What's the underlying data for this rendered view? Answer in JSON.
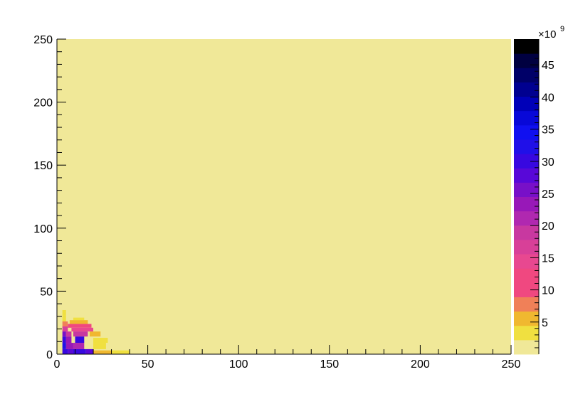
{
  "chart_data": {
    "type": "heatmap",
    "title": "",
    "xlabel": "",
    "ylabel": "",
    "xlim": [
      0,
      250
    ],
    "ylim": [
      0,
      250
    ],
    "x_ticks": [
      "0",
      "50",
      "100",
      "150",
      "200",
      "250"
    ],
    "y_ticks": [
      "0",
      "50",
      "100",
      "150",
      "200",
      "250"
    ],
    "colorbar": {
      "range": [
        0,
        49
      ],
      "multiplier_prefix": "×10",
      "multiplier_exponent": "9",
      "ticks": [
        "5",
        "10",
        "15",
        "20",
        "25",
        "30",
        "35",
        "40",
        "45"
      ],
      "colors": [
        "#f0e898",
        "#f0e040",
        "#f0b830",
        "#f08058",
        "#f04880",
        "#f04880",
        "#e84890",
        "#d84098",
        "#c838a0",
        "#b028b0",
        "#9818b8",
        "#7810c8",
        "#5808d8",
        "#3808e0",
        "#2010e8",
        "#1010f0",
        "#0808d8",
        "#0000b8",
        "#000090",
        "#000068",
        "#000040",
        "#000000"
      ],
      "background_color": "#f0e898"
    },
    "cells": [
      {
        "x": [
          3,
          6
        ],
        "y": [
          0,
          4
        ],
        "value": 31
      },
      {
        "x": [
          6,
          9
        ],
        "y": [
          0,
          4
        ],
        "value": 27
      },
      {
        "x": [
          9,
          16
        ],
        "y": [
          0,
          4
        ],
        "value": 30
      },
      {
        "x": [
          16,
          20
        ],
        "y": [
          0,
          4
        ],
        "value": 28
      },
      {
        "x": [
          3,
          5
        ],
        "y": [
          4,
          9
        ],
        "value": 32
      },
      {
        "x": [
          5,
          9
        ],
        "y": [
          4,
          9
        ],
        "value": 24
      },
      {
        "x": [
          9,
          15
        ],
        "y": [
          4,
          9
        ],
        "value": 22
      },
      {
        "x": [
          3,
          5
        ],
        "y": [
          9,
          14
        ],
        "value": 30
      },
      {
        "x": [
          5,
          8
        ],
        "y": [
          9,
          14
        ],
        "value": 24
      },
      {
        "x": [
          10,
          15
        ],
        "y": [
          9,
          14
        ],
        "value": 30
      },
      {
        "x": [
          3,
          5
        ],
        "y": [
          14,
          18
        ],
        "value": 26
      },
      {
        "x": [
          5,
          8
        ],
        "y": [
          14,
          18
        ],
        "value": 18
      },
      {
        "x": [
          9,
          17
        ],
        "y": [
          14,
          18
        ],
        "value": 18
      },
      {
        "x": [
          8,
          20
        ],
        "y": [
          18,
          21
        ],
        "value": 15
      },
      {
        "x": [
          3,
          6
        ],
        "y": [
          18,
          22
        ],
        "value": 16
      },
      {
        "x": [
          6,
          19
        ],
        "y": [
          21,
          24
        ],
        "value": 11
      },
      {
        "x": [
          3,
          6
        ],
        "y": [
          22,
          26
        ],
        "value": 8
      },
      {
        "x": [
          7,
          17
        ],
        "y": [
          24,
          27
        ],
        "value": 6
      },
      {
        "x": [
          3,
          5
        ],
        "y": [
          26,
          31
        ],
        "value": 4
      },
      {
        "x": [
          9,
          15
        ],
        "y": [
          27,
          29
        ],
        "value": 3
      },
      {
        "x": [
          20,
          27
        ],
        "y": [
          4,
          9
        ],
        "value": 3
      },
      {
        "x": [
          20,
          28
        ],
        "y": [
          9,
          13
        ],
        "value": 4
      },
      {
        "x": [
          18,
          24
        ],
        "y": [
          14,
          18
        ],
        "value": 5
      },
      {
        "x": [
          3,
          5
        ],
        "y": [
          31,
          35
        ],
        "value": 3
      },
      {
        "x": [
          20,
          30
        ],
        "y": [
          0,
          3
        ],
        "value": 6
      },
      {
        "x": [
          30,
          40
        ],
        "y": [
          0,
          3
        ],
        "value": 3
      }
    ]
  }
}
